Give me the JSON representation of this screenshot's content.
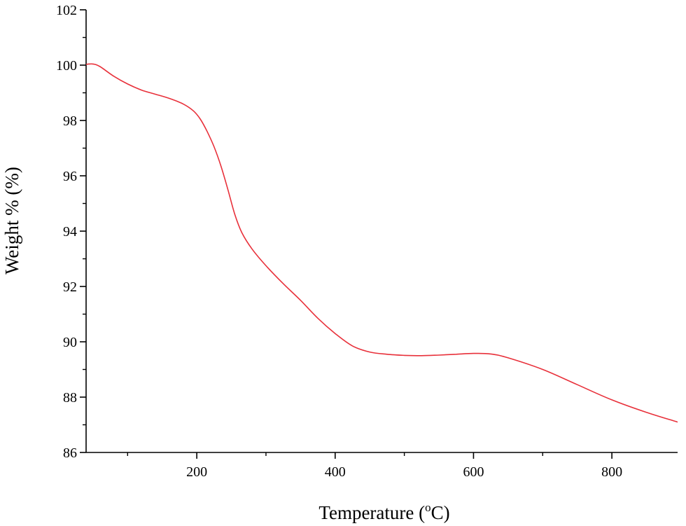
{
  "chart_data": {
    "type": "line",
    "title": "",
    "xlabel": "Temperature (",
    "xlabel_unit_sup": "o",
    "xlabel_unit": "C)",
    "ylabel": "Weight % (%)",
    "xlim": [
      40,
      895
    ],
    "ylim": [
      86,
      102
    ],
    "xticks": [
      200,
      400,
      600,
      800
    ],
    "xtick_labels": [
      "200",
      "400",
      "600",
      "800"
    ],
    "yticks": [
      86,
      88,
      90,
      92,
      94,
      96,
      98,
      100,
      102
    ],
    "ytick_labels": [
      "86",
      "88",
      "90",
      "92",
      "94",
      "96",
      "98",
      "100",
      "102"
    ],
    "grid": false,
    "legend": "none",
    "series": [
      {
        "color": "#e8303a",
        "x": [
          40,
          50,
          60,
          80,
          100,
          120,
          140,
          160,
          180,
          195,
          205,
          215,
          225,
          235,
          245,
          255,
          265,
          280,
          300,
          325,
          350,
          375,
          400,
          425,
          450,
          475,
          500,
          525,
          550,
          575,
          600,
          625,
          650,
          700,
          750,
          800,
          850,
          895
        ],
        "y": [
          100.03,
          100.04,
          99.95,
          99.6,
          99.32,
          99.1,
          98.95,
          98.8,
          98.6,
          98.35,
          98.05,
          97.6,
          97.05,
          96.35,
          95.5,
          94.6,
          93.95,
          93.35,
          92.75,
          92.1,
          91.5,
          90.85,
          90.3,
          89.85,
          89.63,
          89.55,
          89.51,
          89.5,
          89.52,
          89.55,
          89.58,
          89.56,
          89.42,
          89.0,
          88.45,
          87.9,
          87.45,
          87.1
        ]
      }
    ]
  }
}
